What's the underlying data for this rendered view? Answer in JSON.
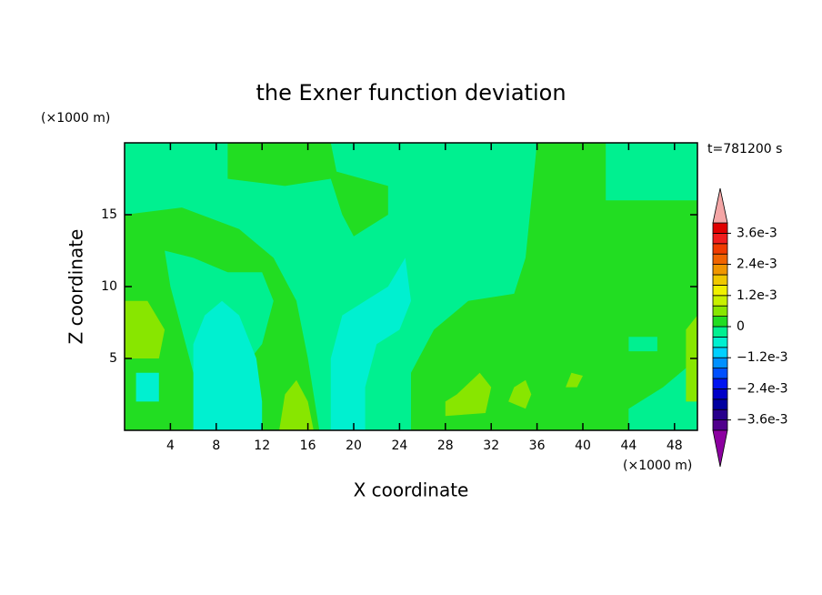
{
  "chart_data": {
    "type": "contour",
    "title": "the Exner function deviation",
    "x_label": "X coordinate",
    "y_label": "Z coordinate",
    "x_unit": "(×1000 m)",
    "y_unit": "(×1000 m)",
    "time_label": "t=781200 s",
    "xlim": [
      0,
      50
    ],
    "ylim": [
      0,
      20
    ],
    "xticks": [
      4,
      8,
      12,
      16,
      20,
      24,
      28,
      32,
      36,
      40,
      44,
      48
    ],
    "yticks": [
      5,
      10,
      15
    ],
    "levels": [
      -0.004,
      -0.0036,
      -0.0032,
      -0.0028,
      -0.0024,
      -0.002,
      -0.0016,
      -0.0012,
      -0.0008,
      -0.0004,
      0,
      0.0004,
      0.0008,
      0.0012,
      0.0016,
      0.002,
      0.0024,
      0.0028,
      0.0032,
      0.0036,
      0.004
    ],
    "colors": [
      "#50008c",
      "#28008c",
      "#0000a0",
      "#0000c8",
      "#0014f0",
      "#0050ff",
      "#0090ff",
      "#00d0ff",
      "#00f0d0",
      "#00f090",
      "#22dd22",
      "#88e600",
      "#c8f000",
      "#f0f000",
      "#f0c800",
      "#f09600",
      "#f06400",
      "#f03c00",
      "#f01e1e",
      "#e00000"
    ],
    "over_color": "#f4a6a6",
    "under_color": "#8c00a0",
    "colorbar_ticks": [
      {
        "value": 0.0036,
        "label": "3.6e-3"
      },
      {
        "value": 0.0024,
        "label": "2.4e-3"
      },
      {
        "value": 0.0012,
        "label": "1.2e-3"
      },
      0,
      {
        "value": -0.0012,
        "label": "−1.2e-3"
      },
      {
        "value": -0.0024,
        "label": "−2.4e-3"
      },
      {
        "value": -0.0036,
        "label": "−3.6e-3"
      }
    ],
    "background_value": -0.0002,
    "regions": [
      {
        "value": 0.0002,
        "points": [
          [
            0,
            0
          ],
          [
            0,
            15
          ],
          [
            5,
            15.5
          ],
          [
            10,
            14
          ],
          [
            13,
            12
          ],
          [
            15,
            9
          ],
          [
            16,
            5
          ],
          [
            17,
            0
          ]
        ]
      },
      {
        "value": -0.0002,
        "points": [
          [
            3.5,
            12.5
          ],
          [
            6,
            12
          ],
          [
            9,
            11
          ],
          [
            12,
            11
          ],
          [
            13,
            9
          ],
          [
            12,
            6
          ],
          [
            10,
            4
          ],
          [
            8,
            3
          ],
          [
            6,
            4
          ],
          [
            5,
            7
          ],
          [
            4,
            10
          ]
        ]
      },
      {
        "value": -0.0006,
        "points": [
          [
            6,
            0
          ],
          [
            6,
            6
          ],
          [
            7,
            8
          ],
          [
            8.5,
            9
          ],
          [
            10,
            8
          ],
          [
            11.5,
            5
          ],
          [
            12,
            2
          ],
          [
            12,
            0
          ]
        ]
      },
      {
        "value": 0.0002,
        "points": [
          [
            9,
            20
          ],
          [
            9,
            17.5
          ],
          [
            14,
            17
          ],
          [
            18,
            17.5
          ],
          [
            19,
            15
          ],
          [
            20,
            13.5
          ],
          [
            23,
            15
          ],
          [
            23,
            17
          ],
          [
            18.5,
            18
          ],
          [
            18,
            20
          ]
        ]
      },
      {
        "value": 0.0002,
        "points": [
          [
            25,
            0
          ],
          [
            25,
            4
          ],
          [
            27,
            7
          ],
          [
            30,
            9
          ],
          [
            34,
            9.5
          ],
          [
            35,
            12
          ],
          [
            36,
            20
          ],
          [
            42,
            20
          ],
          [
            42,
            16
          ],
          [
            50,
            16
          ],
          [
            50,
            5
          ],
          [
            47,
            3
          ],
          [
            44,
            1.5
          ],
          [
            44,
            0
          ]
        ]
      },
      {
        "value": -0.0006,
        "points": [
          [
            18,
            0
          ],
          [
            18,
            5
          ],
          [
            19,
            8
          ],
          [
            21,
            9
          ],
          [
            23,
            10
          ],
          [
            24.5,
            12
          ],
          [
            25,
            9
          ],
          [
            24,
            7
          ],
          [
            22,
            6
          ],
          [
            21,
            3
          ],
          [
            21,
            0
          ]
        ]
      },
      {
        "value": 0.0006,
        "points": [
          [
            0,
            5
          ],
          [
            0,
            9
          ],
          [
            2,
            9
          ],
          [
            3.5,
            7
          ],
          [
            3,
            5
          ]
        ]
      },
      {
        "value": 0.0006,
        "points": [
          [
            13.5,
            0
          ],
          [
            14,
            2.5
          ],
          [
            15,
            3.5
          ],
          [
            16,
            2
          ],
          [
            16.5,
            0
          ]
        ]
      },
      {
        "value": 0.0006,
        "points": [
          [
            28,
            1
          ],
          [
            28,
            2
          ],
          [
            29,
            2.5
          ],
          [
            31,
            4
          ],
          [
            32,
            3
          ],
          [
            31.5,
            1.2
          ]
        ]
      },
      {
        "value": 0.0006,
        "points": [
          [
            33.5,
            2
          ],
          [
            34,
            3
          ],
          [
            35,
            3.5
          ],
          [
            35.5,
            2.5
          ],
          [
            35,
            1.5
          ]
        ]
      },
      {
        "value": 0.0006,
        "points": [
          [
            38.5,
            3
          ],
          [
            39,
            4
          ],
          [
            40,
            3.8
          ],
          [
            39.5,
            3
          ]
        ]
      },
      {
        "value": 0.0006,
        "points": [
          [
            49,
            2
          ],
          [
            49,
            7
          ],
          [
            50,
            8
          ],
          [
            50,
            2
          ]
        ]
      },
      {
        "value": -0.0006,
        "points": [
          [
            1,
            2
          ],
          [
            1,
            4
          ],
          [
            3,
            4
          ],
          [
            3,
            2
          ]
        ]
      },
      {
        "value": -0.0002,
        "points": [
          [
            44,
            0
          ],
          [
            44,
            1.5
          ],
          [
            50,
            1.5
          ],
          [
            50,
            0
          ]
        ]
      },
      {
        "value": -0.0002,
        "points": [
          [
            44,
            5.5
          ],
          [
            46.5,
            5.5
          ],
          [
            46.5,
            6.5
          ],
          [
            44,
            6.5
          ]
        ]
      }
    ]
  }
}
